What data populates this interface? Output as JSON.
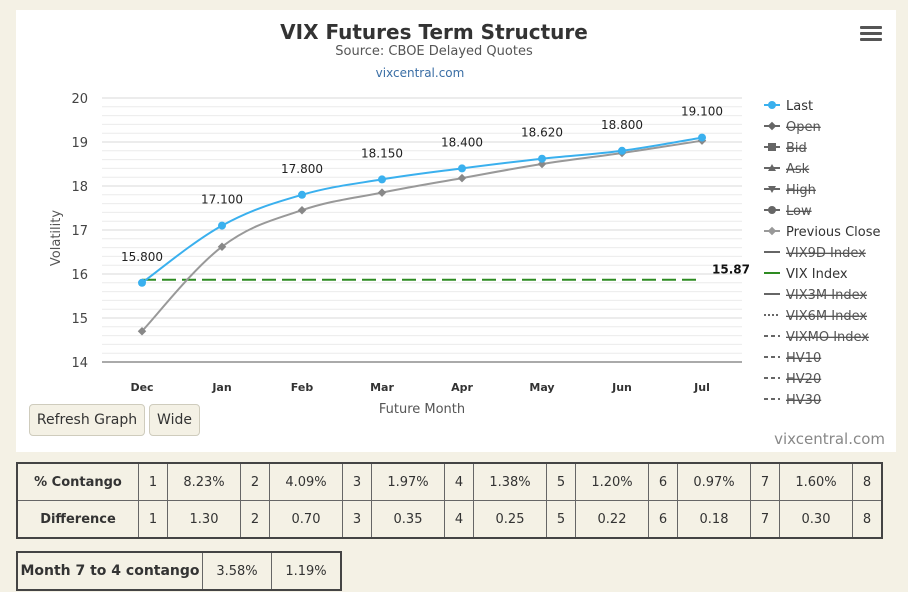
{
  "chart_data": {
    "type": "line",
    "title": "VIX Futures Term Structure",
    "subtitle": "Source: CBOE Delayed Quotes",
    "source_link": "vixcentral.com",
    "xlabel": "Future Month",
    "ylabel": "Volatility",
    "categories": [
      "Dec",
      "Jan",
      "Feb",
      "Mar",
      "Apr",
      "May",
      "Jun",
      "Jul"
    ],
    "ylim": [
      14,
      20
    ],
    "yticks": [
      14,
      15,
      16,
      17,
      18,
      19,
      20
    ],
    "grid": true,
    "legend_position": "right",
    "series": [
      {
        "name": "Last",
        "values": [
          15.8,
          17.1,
          17.8,
          18.15,
          18.4,
          18.62,
          18.8,
          19.1
        ],
        "labels": [
          "15.800",
          "17.100",
          "17.800",
          "18.150",
          "18.400",
          "18.620",
          "18.800",
          "19.100"
        ],
        "color": "#3ab0ee"
      },
      {
        "name": "Previous Close",
        "values": [
          14.7,
          16.62,
          17.45,
          17.85,
          18.18,
          18.5,
          18.75,
          19.03
        ],
        "color": "#999999"
      },
      {
        "name": "VIX Index",
        "value": 15.87,
        "label": "15.87",
        "color": "#2e8b22"
      }
    ],
    "legend": [
      {
        "name": "Last",
        "marker": "circle",
        "color": "#3ab0ee",
        "line": "solid",
        "visible": true
      },
      {
        "name": "Open",
        "marker": "diamond",
        "color": "#555555",
        "line": "solid",
        "visible": false
      },
      {
        "name": "Bid",
        "marker": "square",
        "color": "#555555",
        "line": "solid",
        "visible": false
      },
      {
        "name": "Ask",
        "marker": "triangle-up",
        "color": "#555555",
        "line": "solid",
        "visible": false
      },
      {
        "name": "High",
        "marker": "triangle-down",
        "color": "#555555",
        "line": "solid",
        "visible": false
      },
      {
        "name": "Low",
        "marker": "circle",
        "color": "#555555",
        "line": "solid",
        "visible": false
      },
      {
        "name": "Previous Close",
        "marker": "diamond",
        "color": "#999999",
        "line": "solid",
        "visible": true
      },
      {
        "name": "VIX9D Index",
        "marker": "none",
        "color": "#777777",
        "line": "solid",
        "visible": false
      },
      {
        "name": "VIX Index",
        "marker": "none",
        "color": "#2e8b22",
        "line": "solid",
        "visible": true
      },
      {
        "name": "VIX3M Index",
        "marker": "none",
        "color": "#777777",
        "line": "solid",
        "visible": false
      },
      {
        "name": "VIX6M Index",
        "marker": "none",
        "color": "#777777",
        "line": "dotted",
        "visible": false
      },
      {
        "name": "VIXMO Index",
        "marker": "none",
        "color": "#777777",
        "line": "dashdot",
        "visible": false
      },
      {
        "name": "HV10",
        "marker": "none",
        "color": "#777777",
        "line": "dashdot",
        "visible": false
      },
      {
        "name": "HV20",
        "marker": "none",
        "color": "#777777",
        "line": "dashdot",
        "visible": false
      },
      {
        "name": "HV30",
        "marker": "none",
        "color": "#777777",
        "line": "dashdot",
        "visible": false
      }
    ]
  },
  "buttons": {
    "refresh": "Refresh Graph",
    "wide": "Wide"
  },
  "credit": "vixcentral.com",
  "contango_table": {
    "rows": [
      {
        "label": "% Contango",
        "cells": [
          [
            "1",
            "8.23%"
          ],
          [
            "2",
            "4.09%"
          ],
          [
            "3",
            "1.97%"
          ],
          [
            "4",
            "1.38%"
          ],
          [
            "5",
            "1.20%"
          ],
          [
            "6",
            "0.97%"
          ],
          [
            "7",
            "1.60%"
          ]
        ],
        "last": "8"
      },
      {
        "label": "Difference",
        "cells": [
          [
            "1",
            "1.30"
          ],
          [
            "2",
            "0.70"
          ],
          [
            "3",
            "0.35"
          ],
          [
            "4",
            "0.25"
          ],
          [
            "5",
            "0.22"
          ],
          [
            "6",
            "0.18"
          ],
          [
            "7",
            "0.30"
          ]
        ],
        "last": "8"
      }
    ]
  },
  "month_table": {
    "label": "Month 7 to 4 contango",
    "values": [
      "3.58%",
      "1.19%"
    ]
  }
}
